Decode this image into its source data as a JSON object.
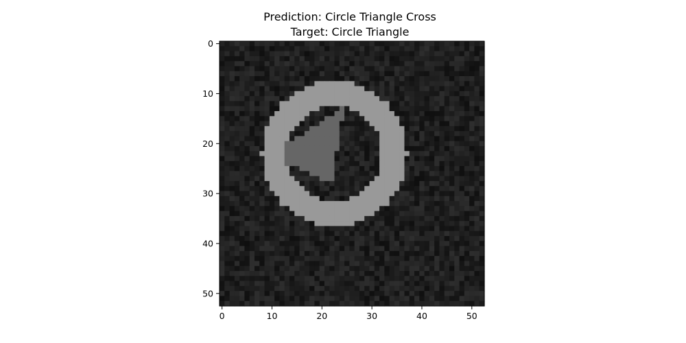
{
  "chart_data": {
    "type": "heatmap",
    "title_lines": [
      "Prediction: Circle Triangle Cross",
      "Target: Circle Triangle"
    ],
    "xlabel": "",
    "ylabel": "",
    "image_size": [
      53,
      53
    ],
    "xlim": [
      -0.5,
      52.5
    ],
    "ylim": [
      52.5,
      -0.5
    ],
    "xticks": [
      0,
      10,
      20,
      30,
      40,
      50
    ],
    "yticks": [
      0,
      10,
      20,
      30,
      40,
      50
    ],
    "colormap": "gray",
    "grid": false,
    "background_intensity": 0.12,
    "shapes": [
      {
        "name": "Circle",
        "kind": "ring",
        "center": [
          22.5,
          22
        ],
        "outer_radius": 14.5,
        "inner_radius": 9.5,
        "intensity": 0.6
      },
      {
        "name": "Triangle",
        "kind": "polygon",
        "vertices": [
          [
            24.5,
            12.5
          ],
          [
            13,
            20
          ],
          [
            13,
            24
          ],
          [
            22,
            28
          ]
        ],
        "intensity": 0.4
      }
    ]
  }
}
